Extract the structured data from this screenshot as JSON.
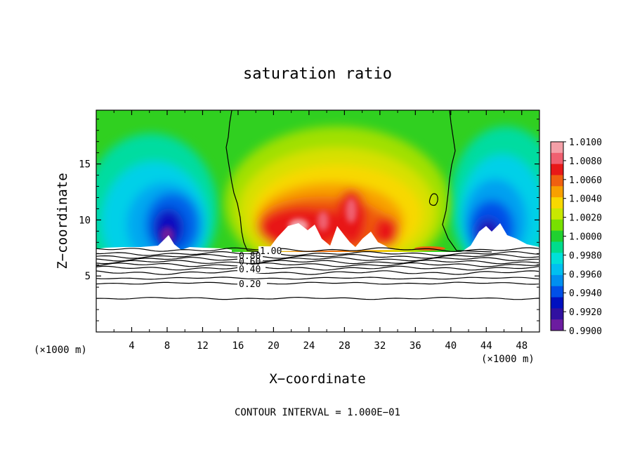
{
  "chart_data": {
    "type": "heatmap",
    "title": "saturation ratio",
    "xlabel": "X−coordinate",
    "ylabel": "Z−coordinate",
    "x_unit_left": "(×1000 m)",
    "x_unit_right": "(×1000 m)",
    "xlim": [
      0,
      50
    ],
    "ylim": [
      0,
      19.8
    ],
    "xticks": [
      4,
      8,
      12,
      16,
      20,
      24,
      28,
      32,
      36,
      40,
      44,
      48
    ],
    "yticks": [
      5,
      10,
      15
    ],
    "colorbar": {
      "levels": [
        "1.0100",
        "1.0080",
        "1.0060",
        "1.0040",
        "1.0020",
        "1.0000",
        "0.9980",
        "0.9960",
        "0.9940",
        "0.9920",
        "0.9900"
      ],
      "colors": [
        "#f4a0a8",
        "#f06070",
        "#e81818",
        "#f06010",
        "#f8a000",
        "#f8d800",
        "#c8e800",
        "#78e000",
        "#20d030",
        "#00dc8c",
        "#00e0d8",
        "#00c0f0",
        "#0090f0",
        "#0050e8",
        "#0010c0",
        "#3010a0",
        "#6c1ca0"
      ]
    },
    "contour_labels": [
      "1.00",
      "0.80",
      "0.60",
      "0.40",
      "0.20"
    ],
    "contour_levels_z": [
      7.35,
      7.0,
      6.75,
      6.5,
      6.25,
      6.0,
      5.7,
      5.3,
      4.8,
      4.35,
      3.0
    ],
    "annotation": "CONTOUR INTERVAL = 1.000E−01"
  }
}
